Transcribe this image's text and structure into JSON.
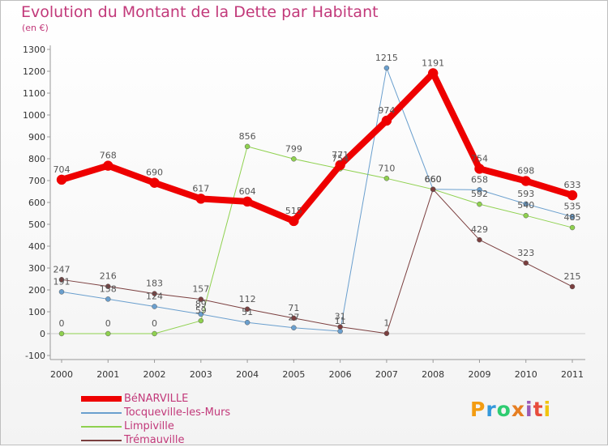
{
  "title": "Evolution du Montant de la Dette par Habitant",
  "subtitle": "(en €)",
  "brand": {
    "letters": [
      "P",
      "r",
      "o",
      "x",
      "i",
      "t",
      "i"
    ],
    "colors": [
      "#f39c12",
      "#3498db",
      "#2ecc71",
      "#e67e22",
      "#9b59b6",
      "#e74c3c",
      "#f1c40f"
    ]
  },
  "chart_data": {
    "type": "line",
    "x": [
      "2000",
      "2001",
      "2002",
      "2003",
      "2004",
      "2005",
      "2006",
      "2007",
      "2008",
      "2009",
      "2010",
      "2011"
    ],
    "ylim": [
      -100,
      1300
    ],
    "yticks": [
      -100,
      0,
      100,
      200,
      300,
      400,
      500,
      600,
      700,
      800,
      900,
      1000,
      1100,
      1200,
      1300
    ],
    "grid": false,
    "legend_position": "bottom-left",
    "series": [
      {
        "name": "Limpiville",
        "color": "#8fd14f",
        "width": 1,
        "values": [
          0,
          0,
          0,
          59,
          856,
          799,
          754,
          710,
          660,
          592,
          540,
          485
        ],
        "labels": [
          "0",
          "0",
          "0",
          "59",
          "856",
          "799",
          "754",
          "710",
          "660",
          "592",
          "540",
          "485"
        ]
      },
      {
        "name": "Tocqueville-les-Murs",
        "color": "#6a9fce",
        "width": 1,
        "values": [
          191,
          158,
          124,
          89,
          51,
          27,
          11,
          1215,
          660,
          658,
          593,
          535
        ],
        "labels": [
          "191",
          "158",
          "124",
          "89",
          "51",
          "27",
          "11",
          "1215",
          "660",
          "658",
          "593",
          "535"
        ]
      },
      {
        "name": "Trémauville",
        "color": "#7b3f3f",
        "width": 1,
        "values": [
          247,
          216,
          183,
          157,
          112,
          71,
          31,
          1,
          660,
          429,
          323,
          215
        ],
        "labels": [
          "247",
          "216",
          "183",
          "157",
          "112",
          "71",
          "31",
          "1",
          "660",
          "429",
          "323",
          "215"
        ]
      },
      {
        "name": "BéNARVILLE",
        "color": "#ee0000",
        "width": 8,
        "values": [
          704,
          768,
          690,
          617,
          604,
          515,
          771,
          974,
          1191,
          754,
          698,
          633
        ],
        "labels": [
          "704",
          "768",
          "690",
          "617",
          "604",
          "515",
          "771",
          "974",
          "1191",
          "754",
          "698",
          "633"
        ]
      }
    ],
    "legend_order": [
      3,
      1,
      0,
      2
    ]
  }
}
